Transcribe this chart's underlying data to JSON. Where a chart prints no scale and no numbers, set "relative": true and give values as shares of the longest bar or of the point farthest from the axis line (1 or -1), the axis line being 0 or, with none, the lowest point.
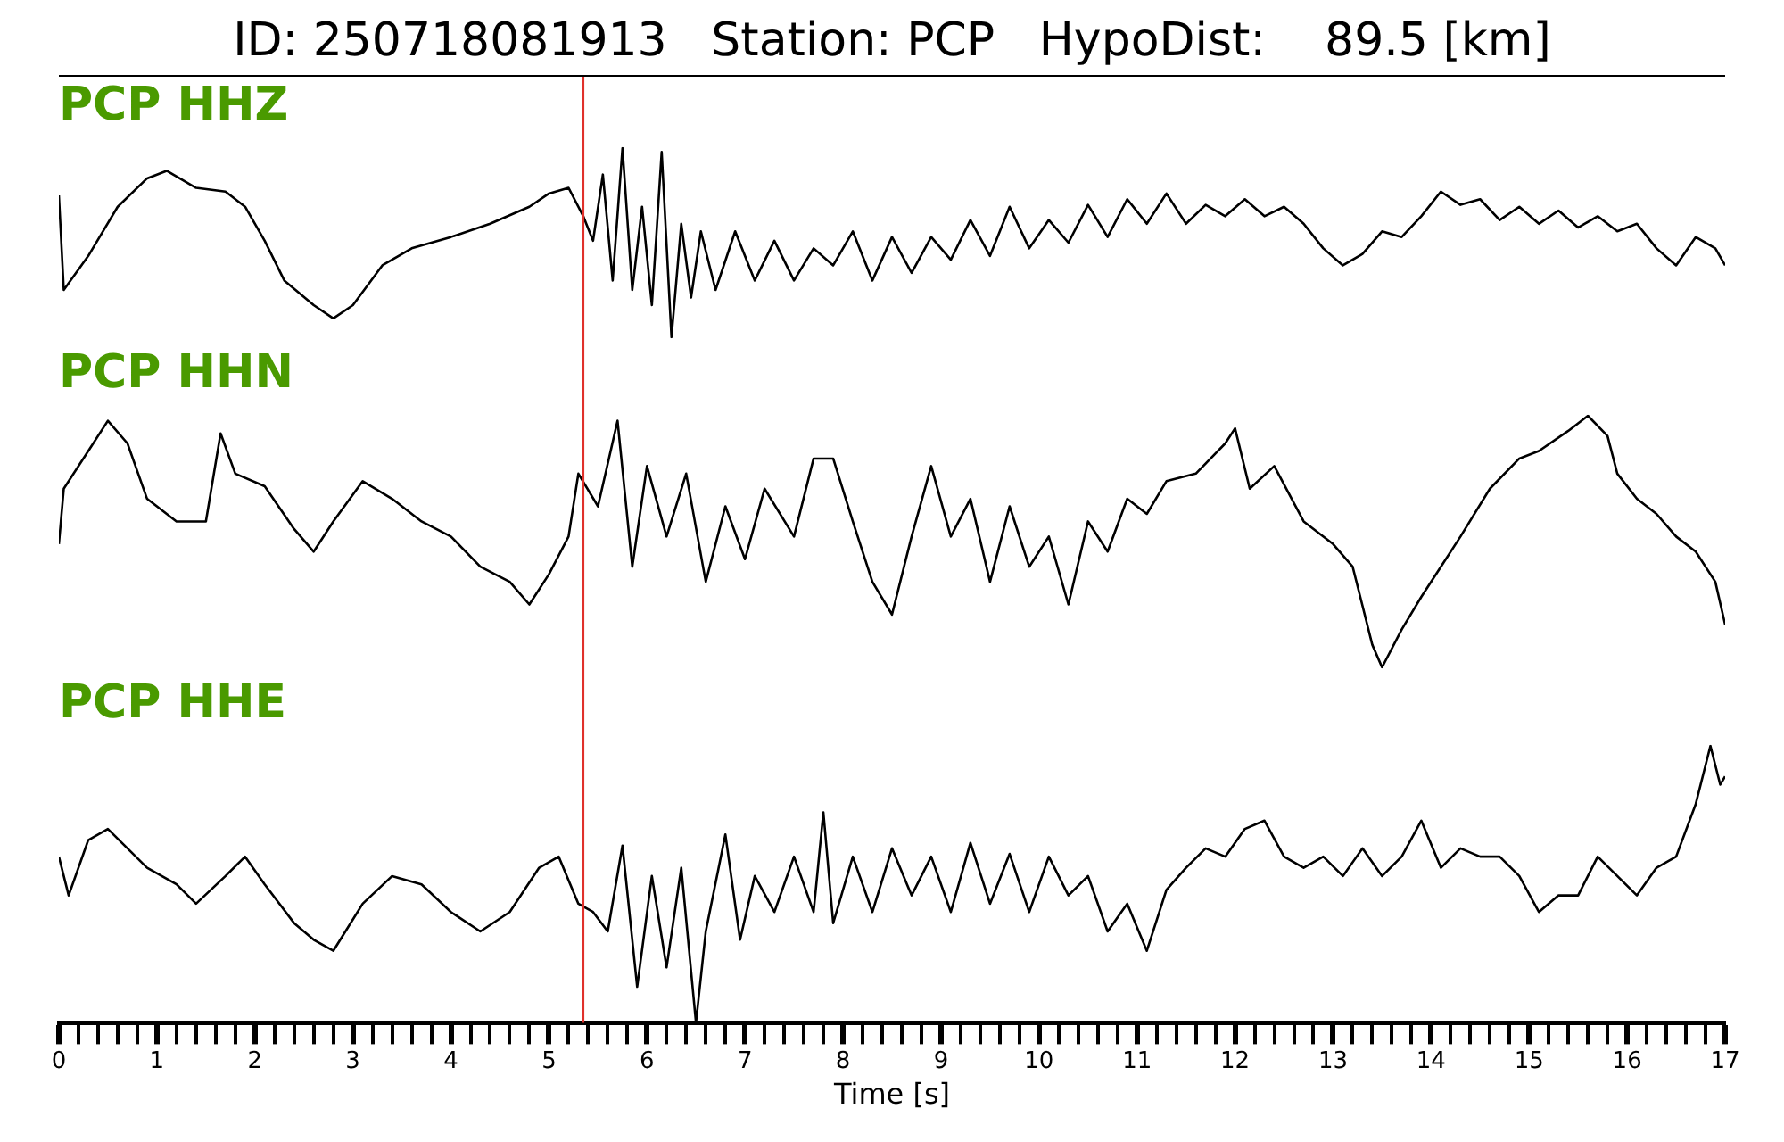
{
  "chart_data": [
    {
      "type": "line",
      "title": "ID: 250718081913   Station: PCP   HypoDist:    89.5 [km]",
      "relative": true,
      "xlim": [
        0,
        17
      ],
      "tick_labels": false,
      "ref_lines": [
        {
          "axis": "x",
          "value": 5.35,
          "color": "#e0312b"
        }
      ],
      "x": [
        0,
        0.05,
        0.3,
        0.6,
        0.9,
        1.1,
        1.4,
        1.7,
        1.9,
        2.1,
        2.3,
        2.6,
        2.8,
        3.0,
        3.3,
        3.6,
        4.0,
        4.4,
        4.8,
        5.0,
        5.2,
        5.35,
        5.45,
        5.55,
        5.65,
        5.75,
        5.85,
        5.95,
        6.05,
        6.15,
        6.25,
        6.35,
        6.45,
        6.55,
        6.7,
        6.9,
        7.1,
        7.3,
        7.5,
        7.7,
        7.9,
        8.1,
        8.3,
        8.5,
        8.7,
        8.9,
        9.1,
        9.3,
        9.5,
        9.7,
        9.9,
        10.1,
        10.3,
        10.5,
        10.7,
        10.9,
        11.1,
        11.3,
        11.5,
        11.7,
        11.9,
        12.1,
        12.3,
        12.5,
        12.7,
        12.9,
        13.1,
        13.3,
        13.5,
        13.7,
        13.9,
        14.1,
        14.3,
        14.5,
        14.7,
        14.9,
        15.1,
        15.3,
        15.5,
        15.7,
        15.9,
        16.1,
        16.3,
        16.5,
        16.7,
        16.9,
        17
      ],
      "series": [
        {
          "name": "PCP HHZ",
          "color": "#000000",
          "values": [
            0.75,
            0.25,
            0.43,
            0.69,
            0.84,
            0.88,
            0.79,
            0.77,
            0.69,
            0.51,
            0.3,
            0.17,
            0.1,
            0.17,
            0.38,
            0.47,
            0.53,
            0.6,
            0.69,
            0.76,
            0.79,
            0.64,
            0.51,
            0.86,
            0.3,
            1,
            0.25,
            0.69,
            0.17,
            0.98,
            0,
            0.6,
            0.21,
            0.56,
            0.25,
            0.56,
            0.3,
            0.51,
            0.3,
            0.47,
            0.38,
            0.56,
            0.3,
            0.53,
            0.34,
            0.53,
            0.41,
            0.62,
            0.43,
            0.69,
            0.47,
            0.62,
            0.5,
            0.7,
            0.53,
            0.73,
            0.6,
            0.76,
            0.6,
            0.7,
            0.64,
            0.73,
            0.64,
            0.69,
            0.6,
            0.47,
            0.38,
            0.44,
            0.56,
            0.53,
            0.64,
            0.77,
            0.7,
            0.73,
            0.62,
            0.69,
            0.6,
            0.67,
            0.58,
            0.64,
            0.56,
            0.6,
            0.47,
            0.38,
            0.53,
            0.47,
            0.38
          ]
        }
      ]
    },
    {
      "type": "line",
      "relative": true,
      "xlim": [
        0,
        17
      ],
      "tick_labels": false,
      "ref_lines": [
        {
          "axis": "x",
          "value": 5.35,
          "color": "#e0312b"
        }
      ],
      "x": [
        0,
        0.05,
        0.3,
        0.5,
        0.7,
        0.9,
        1.2,
        1.5,
        1.65,
        1.8,
        2.1,
        2.4,
        2.6,
        2.8,
        3.1,
        3.4,
        3.7,
        4.0,
        4.3,
        4.6,
        4.8,
        5.0,
        5.2,
        5.3,
        5.5,
        5.7,
        5.85,
        6.0,
        6.2,
        6.4,
        6.6,
        6.8,
        7.0,
        7.2,
        7.5,
        7.7,
        7.9,
        8.1,
        8.3,
        8.5,
        8.7,
        8.9,
        9.1,
        9.3,
        9.5,
        9.7,
        9.9,
        10.1,
        10.3,
        10.5,
        10.7,
        10.9,
        11.1,
        11.3,
        11.6,
        11.9,
        12.0,
        12.15,
        12.4,
        12.7,
        13.0,
        13.2,
        13.4,
        13.5,
        13.7,
        13.9,
        14.1,
        14.3,
        14.6,
        14.9,
        15.1,
        15.4,
        15.6,
        15.8,
        15.9,
        16.1,
        16.3,
        16.5,
        16.7,
        16.9,
        17
      ],
      "series": [
        {
          "name": "PCP HHN",
          "color": "#000000",
          "values": [
            0.49,
            0.71,
            0.86,
            0.98,
            0.89,
            0.67,
            0.58,
            0.58,
            0.93,
            0.77,
            0.72,
            0.55,
            0.46,
            0.58,
            0.74,
            0.67,
            0.58,
            0.52,
            0.4,
            0.34,
            0.25,
            0.37,
            0.52,
            0.77,
            0.64,
            0.98,
            0.4,
            0.8,
            0.52,
            0.77,
            0.34,
            0.64,
            0.43,
            0.71,
            0.52,
            0.83,
            0.83,
            0.58,
            0.34,
            0.21,
            0.52,
            0.8,
            0.52,
            0.67,
            0.34,
            0.64,
            0.4,
            0.52,
            0.25,
            0.58,
            0.46,
            0.67,
            0.61,
            0.74,
            0.77,
            0.89,
            0.95,
            0.71,
            0.8,
            0.58,
            0.49,
            0.4,
            0.09,
            0,
            0.15,
            0.28,
            0.4,
            0.52,
            0.71,
            0.83,
            0.86,
            0.94,
            1,
            0.92,
            0.77,
            0.67,
            0.61,
            0.52,
            0.46,
            0.34,
            0.17
          ]
        }
      ]
    },
    {
      "type": "line",
      "relative": true,
      "xlim": [
        0,
        17
      ],
      "xlabel": "Time [s]",
      "ref_lines": [
        {
          "axis": "x",
          "value": 5.35,
          "color": "#e0312b"
        }
      ],
      "xticks": [
        0,
        {
          "value": 0.2,
          "label": null
        },
        {
          "value": 0.4,
          "label": null
        },
        {
          "value": 0.6,
          "label": null
        },
        {
          "value": 0.8,
          "label": null
        },
        1,
        {
          "value": 1.2,
          "label": null
        },
        {
          "value": 1.4,
          "label": null
        },
        {
          "value": 1.6,
          "label": null
        },
        {
          "value": 1.8,
          "label": null
        },
        2,
        {
          "value": 2.2,
          "label": null
        },
        {
          "value": 2.4,
          "label": null
        },
        {
          "value": 2.6,
          "label": null
        },
        {
          "value": 2.8,
          "label": null
        },
        3,
        {
          "value": 3.2,
          "label": null
        },
        {
          "value": 3.4,
          "label": null
        },
        {
          "value": 3.6,
          "label": null
        },
        {
          "value": 3.8,
          "label": null
        },
        4,
        {
          "value": 4.2,
          "label": null
        },
        {
          "value": 4.4,
          "label": null
        },
        {
          "value": 4.6,
          "label": null
        },
        {
          "value": 4.8,
          "label": null
        },
        5,
        {
          "value": 5.2,
          "label": null
        },
        {
          "value": 5.4,
          "label": null
        },
        {
          "value": 5.6,
          "label": null
        },
        {
          "value": 5.8,
          "label": null
        },
        6,
        {
          "value": 6.2,
          "label": null
        },
        {
          "value": 6.4,
          "label": null
        },
        {
          "value": 6.6,
          "label": null
        },
        {
          "value": 6.8,
          "label": null
        },
        7,
        {
          "value": 7.2,
          "label": null
        },
        {
          "value": 7.4,
          "label": null
        },
        {
          "value": 7.6,
          "label": null
        },
        {
          "value": 7.8,
          "label": null
        },
        8,
        {
          "value": 8.2,
          "label": null
        },
        {
          "value": 8.4,
          "label": null
        },
        {
          "value": 8.6,
          "label": null
        },
        {
          "value": 8.8,
          "label": null
        },
        9,
        {
          "value": 9.2,
          "label": null
        },
        {
          "value": 9.4,
          "label": null
        },
        {
          "value": 9.6,
          "label": null
        },
        {
          "value": 9.8,
          "label": null
        },
        10,
        {
          "value": 10.2,
          "label": null
        },
        {
          "value": 10.4,
          "label": null
        },
        {
          "value": 10.6,
          "label": null
        },
        {
          "value": 10.8,
          "label": null
        },
        11,
        {
          "value": 11.2,
          "label": null
        },
        {
          "value": 11.4,
          "label": null
        },
        {
          "value": 11.6,
          "label": null
        },
        {
          "value": 11.8,
          "label": null
        },
        12,
        {
          "value": 12.2,
          "label": null
        },
        {
          "value": 12.4,
          "label": null
        },
        {
          "value": 12.6,
          "label": null
        },
        {
          "value": 12.8,
          "label": null
        },
        13,
        {
          "value": 13.2,
          "label": null
        },
        {
          "value": 13.4,
          "label": null
        },
        {
          "value": 13.6,
          "label": null
        },
        {
          "value": 13.8,
          "label": null
        },
        14,
        {
          "value": 14.2,
          "label": null
        },
        {
          "value": 14.4,
          "label": null
        },
        {
          "value": 14.6,
          "label": null
        },
        {
          "value": 14.8,
          "label": null
        },
        15,
        {
          "value": 15.2,
          "label": null
        },
        {
          "value": 15.4,
          "label": null
        },
        {
          "value": 15.6,
          "label": null
        },
        {
          "value": 15.8,
          "label": null
        },
        16,
        {
          "value": 16.2,
          "label": null
        },
        {
          "value": 16.4,
          "label": null
        },
        {
          "value": 16.6,
          "label": null
        },
        {
          "value": 16.8,
          "label": null
        },
        17
      ],
      "x": [
        0,
        0.1,
        0.3,
        0.5,
        0.7,
        0.9,
        1.2,
        1.4,
        1.7,
        1.9,
        2.1,
        2.4,
        2.6,
        2.8,
        3.1,
        3.4,
        3.7,
        4.0,
        4.3,
        4.6,
        4.9,
        5.1,
        5.3,
        5.45,
        5.6,
        5.75,
        5.9,
        6.05,
        6.2,
        6.35,
        6.5,
        6.6,
        6.8,
        6.95,
        7.1,
        7.3,
        7.5,
        7.7,
        7.8,
        7.9,
        8.1,
        8.3,
        8.5,
        8.7,
        8.9,
        9.1,
        9.3,
        9.5,
        9.7,
        9.9,
        10.1,
        10.3,
        10.5,
        10.7,
        10.9,
        11.1,
        11.3,
        11.5,
        11.7,
        11.9,
        12.1,
        12.3,
        12.5,
        12.7,
        12.9,
        13.1,
        13.3,
        13.5,
        13.7,
        13.9,
        14.1,
        14.3,
        14.5,
        14.7,
        14.9,
        15.1,
        15.3,
        15.5,
        15.7,
        15.9,
        16.1,
        16.3,
        16.5,
        16.7,
        16.85,
        16.95,
        17
      ],
      "series": [
        {
          "name": "PCP HHE",
          "color": "#000000",
          "values": [
            0.6,
            0.46,
            0.66,
            0.7,
            0.63,
            0.56,
            0.5,
            0.43,
            0.53,
            0.6,
            0.5,
            0.36,
            0.3,
            0.26,
            0.43,
            0.53,
            0.5,
            0.4,
            0.33,
            0.4,
            0.56,
            0.6,
            0.43,
            0.4,
            0.33,
            0.64,
            0.13,
            0.53,
            0.2,
            0.56,
            0,
            0.33,
            0.68,
            0.3,
            0.53,
            0.4,
            0.6,
            0.4,
            0.76,
            0.36,
            0.6,
            0.4,
            0.63,
            0.46,
            0.6,
            0.4,
            0.65,
            0.43,
            0.61,
            0.4,
            0.6,
            0.46,
            0.53,
            0.33,
            0.43,
            0.26,
            0.48,
            0.56,
            0.63,
            0.6,
            0.7,
            0.73,
            0.6,
            0.56,
            0.6,
            0.53,
            0.63,
            0.53,
            0.6,
            0.73,
            0.56,
            0.63,
            0.6,
            0.6,
            0.53,
            0.4,
            0.46,
            0.46,
            0.6,
            0.53,
            0.46,
            0.56,
            0.6,
            0.79,
            1,
            0.86,
            0.89
          ]
        }
      ]
    }
  ]
}
